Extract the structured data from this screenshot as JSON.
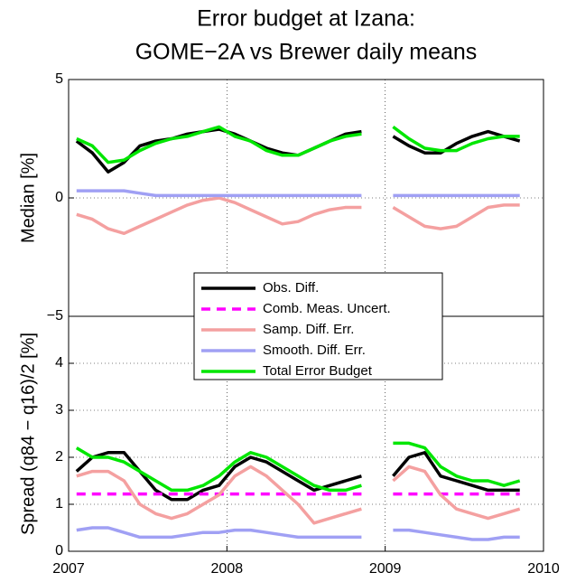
{
  "chart_data": [
    {
      "type": "line",
      "title": [
        "Error budget at Izana:",
        "GOME−2A vs Brewer daily means"
      ],
      "ylabel": "Median [%]",
      "x": [
        2007.05,
        2007.15,
        2007.25,
        2007.35,
        2007.45,
        2007.55,
        2007.65,
        2007.75,
        2007.85,
        2007.95,
        2008.05,
        2008.15,
        2008.25,
        2008.35,
        2008.45,
        2008.55,
        2008.65,
        2008.75,
        2008.85,
        2008.92,
        2009.05,
        2009.15,
        2009.25,
        2009.35,
        2009.45,
        2009.55,
        2009.65,
        2009.75,
        2009.85
      ],
      "series": [
        {
          "color": "#000000",
          "values": [
            2.4,
            1.9,
            1.1,
            1.5,
            2.2,
            2.4,
            2.5,
            2.7,
            2.8,
            2.9,
            2.7,
            2.4,
            2.1,
            1.9,
            1.8,
            2.1,
            2.4,
            2.7,
            2.8,
            null,
            2.6,
            2.2,
            1.9,
            1.9,
            2.3,
            2.6,
            2.8,
            2.6,
            2.4
          ]
        },
        {
          "color": "#f4a0a0",
          "values": [
            -0.7,
            -0.9,
            -1.3,
            -1.5,
            -1.2,
            -0.9,
            -0.6,
            -0.3,
            -0.1,
            0.0,
            -0.2,
            -0.5,
            -0.8,
            -1.1,
            -1.0,
            -0.7,
            -0.5,
            -0.4,
            -0.4,
            null,
            -0.4,
            -0.8,
            -1.2,
            -1.3,
            -1.2,
            -0.8,
            -0.4,
            -0.3,
            -0.3
          ]
        },
        {
          "color": "#a0a0f4",
          "values": [
            0.3,
            0.3,
            0.3,
            0.3,
            0.2,
            0.1,
            0.1,
            0.1,
            0.1,
            0.1,
            0.1,
            0.1,
            0.1,
            0.1,
            0.1,
            0.1,
            0.1,
            0.1,
            0.1,
            null,
            0.1,
            0.1,
            0.1,
            0.1,
            0.1,
            0.1,
            0.1,
            0.1,
            0.1
          ]
        },
        {
          "color": "#00e600",
          "values": [
            2.5,
            2.2,
            1.5,
            1.6,
            2.0,
            2.3,
            2.5,
            2.6,
            2.8,
            3.0,
            2.6,
            2.4,
            2.0,
            1.8,
            1.8,
            2.1,
            2.4,
            2.6,
            2.7,
            null,
            3.0,
            2.5,
            2.1,
            2.0,
            2.0,
            2.3,
            2.5,
            2.6,
            2.6
          ]
        }
      ],
      "xlim": [
        2007,
        2010
      ],
      "xticks": [
        2007,
        2008,
        2009,
        2010
      ],
      "ylim": [
        -5,
        5
      ],
      "yticks": [
        {
          "value": -5,
          "label": "−5"
        },
        0,
        5
      ],
      "grid": true
    },
    {
      "type": "line",
      "ylabel": "Spread (q84 − q16)/2 [%]",
      "x": [
        2007.05,
        2007.15,
        2007.25,
        2007.35,
        2007.45,
        2007.55,
        2007.65,
        2007.75,
        2007.85,
        2007.95,
        2008.05,
        2008.15,
        2008.25,
        2008.35,
        2008.45,
        2008.55,
        2008.65,
        2008.75,
        2008.85,
        2008.92,
        2009.05,
        2009.15,
        2009.25,
        2009.35,
        2009.45,
        2009.55,
        2009.65,
        2009.75,
        2009.85
      ],
      "series": [
        {
          "name": "Obs. Diff.",
          "color": "#000000",
          "values": [
            1.7,
            2.0,
            2.1,
            2.1,
            1.7,
            1.3,
            1.1,
            1.1,
            1.3,
            1.4,
            1.8,
            2.0,
            1.9,
            1.7,
            1.5,
            1.3,
            1.4,
            1.5,
            1.6,
            null,
            1.6,
            2.0,
            2.1,
            1.6,
            1.5,
            1.4,
            1.3,
            1.3,
            1.3
          ]
        },
        {
          "name": "Comb. Meas. Uncert.",
          "color": "#ff00ff",
          "linestyle": "dashed",
          "values": [
            1.22,
            1.22,
            1.22,
            1.22,
            1.22,
            1.22,
            1.22,
            1.22,
            1.22,
            1.22,
            1.22,
            1.22,
            1.22,
            1.22,
            1.22,
            1.22,
            1.22,
            1.22,
            1.22,
            null,
            1.22,
            1.22,
            1.22,
            1.22,
            1.22,
            1.22,
            1.22,
            1.22,
            1.22
          ]
        },
        {
          "name": "Samp. Diff. Err.",
          "color": "#f4a0a0",
          "values": [
            1.6,
            1.7,
            1.7,
            1.5,
            1.0,
            0.8,
            0.7,
            0.8,
            1.0,
            1.2,
            1.6,
            1.8,
            1.6,
            1.3,
            1.0,
            0.6,
            0.7,
            0.8,
            0.9,
            null,
            1.5,
            1.8,
            1.7,
            1.2,
            0.9,
            0.8,
            0.7,
            0.8,
            0.9
          ]
        },
        {
          "name": "Smooth. Diff. Err.",
          "color": "#a0a0f4",
          "values": [
            0.45,
            0.5,
            0.5,
            0.4,
            0.3,
            0.3,
            0.3,
            0.35,
            0.4,
            0.4,
            0.45,
            0.45,
            0.4,
            0.35,
            0.3,
            0.3,
            0.3,
            0.3,
            0.3,
            null,
            0.45,
            0.45,
            0.4,
            0.35,
            0.3,
            0.25,
            0.25,
            0.3,
            0.3
          ]
        },
        {
          "name": "Total Error Budget",
          "color": "#00e600",
          "values": [
            2.2,
            2.0,
            2.0,
            1.9,
            1.7,
            1.5,
            1.3,
            1.3,
            1.4,
            1.6,
            1.9,
            2.1,
            2.0,
            1.8,
            1.6,
            1.4,
            1.3,
            1.3,
            1.4,
            null,
            2.3,
            2.3,
            2.2,
            1.8,
            1.6,
            1.5,
            1.5,
            1.4,
            1.5
          ]
        }
      ],
      "xlim": [
        2007,
        2010
      ],
      "xticks": [
        2007,
        2008,
        2009,
        2010
      ],
      "ylim": [
        0,
        5
      ],
      "yticks": [
        0,
        1,
        2,
        3,
        4
      ],
      "grid": true,
      "legend": "center"
    }
  ]
}
